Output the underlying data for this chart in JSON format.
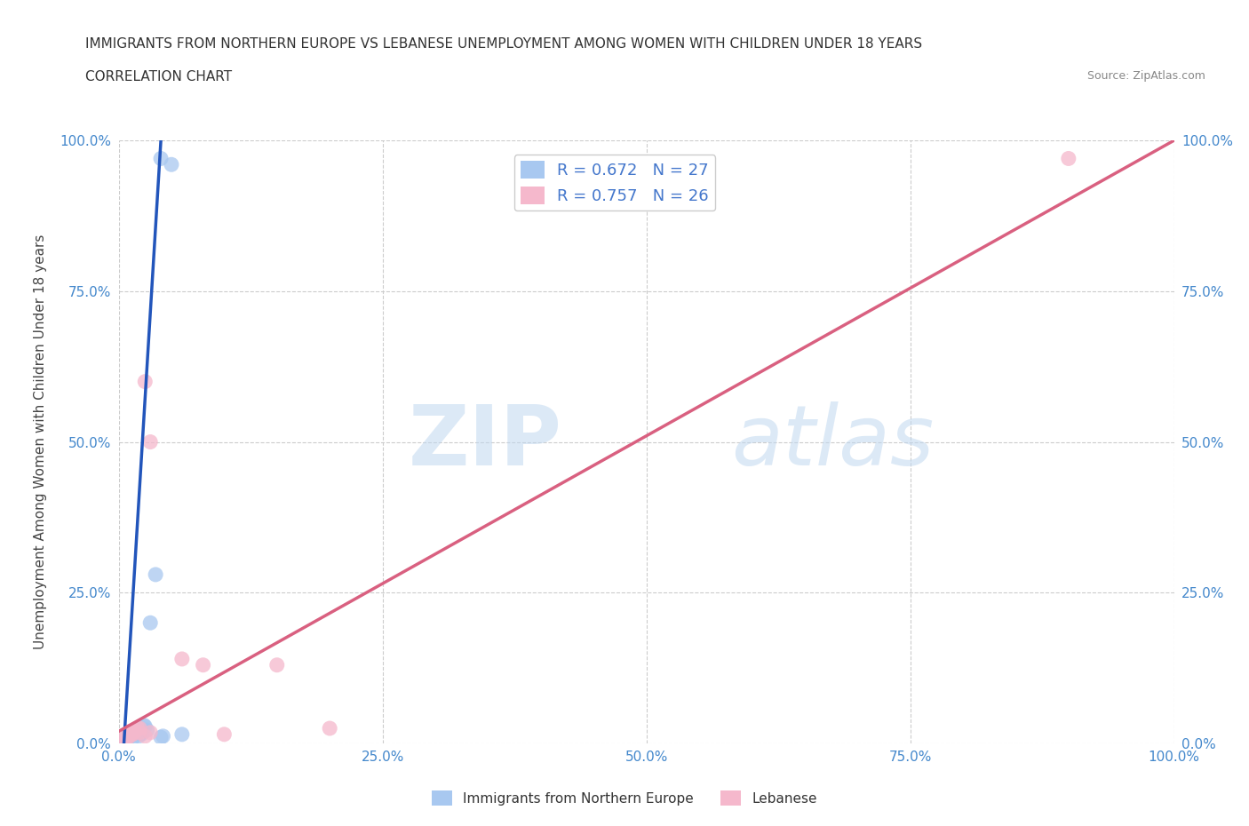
{
  "title_line1": "IMMIGRANTS FROM NORTHERN EUROPE VS LEBANESE UNEMPLOYMENT AMONG WOMEN WITH CHILDREN UNDER 18 YEARS",
  "title_line2": "CORRELATION CHART",
  "source": "Source: ZipAtlas.com",
  "ylabel": "Unemployment Among Women with Children Under 18 years",
  "xlim": [
    0.0,
    1.0
  ],
  "ylim": [
    0.0,
    1.0
  ],
  "xtick_values": [
    0.0,
    0.25,
    0.5,
    0.75,
    1.0
  ],
  "xtick_labels": [
    "0.0%",
    "25.0%",
    "50.0%",
    "75.0%",
    "100.0%"
  ],
  "ytick_values": [
    0.0,
    0.25,
    0.5,
    0.75,
    1.0
  ],
  "ytick_labels": [
    "0.0%",
    "25.0%",
    "50.0%",
    "75.0%",
    "100.0%"
  ],
  "right_ytick_labels": [
    "100.0%",
    "75.0%",
    "50.0%",
    "25.0%",
    "0.0%"
  ],
  "watermark_zip": "ZIP",
  "watermark_atlas": "atlas",
  "legend_R1": "R = 0.672",
  "legend_N1": "N = 27",
  "legend_R2": "R = 0.757",
  "legend_N2": "N = 26",
  "color_blue": "#a8c8f0",
  "color_pink": "#f5b8cc",
  "color_blue_line": "#2255bb",
  "color_pink_line": "#d96080",
  "background": "#ffffff",
  "grid_color": "#cccccc",
  "tick_color": "#4488cc",
  "blue_line_x0": 0.005,
  "blue_line_y0": 0.0,
  "blue_line_x1": 0.04,
  "blue_line_y1": 1.0,
  "pink_line_x0": 0.0,
  "pink_line_y0": 0.02,
  "pink_line_x1": 1.0,
  "pink_line_y1": 1.0,
  "blue_scatter_x": [
    0.005,
    0.007,
    0.008,
    0.009,
    0.01,
    0.011,
    0.012,
    0.013,
    0.014,
    0.015,
    0.016,
    0.017,
    0.018,
    0.019,
    0.02,
    0.021,
    0.022,
    0.024,
    0.025,
    0.027,
    0.03,
    0.035,
    0.04,
    0.05,
    0.06,
    0.04,
    0.042
  ],
  "blue_scatter_y": [
    0.005,
    0.006,
    0.01,
    0.008,
    0.012,
    0.015,
    0.013,
    0.018,
    0.01,
    0.02,
    0.018,
    0.015,
    0.022,
    0.012,
    0.025,
    0.02,
    0.016,
    0.03,
    0.028,
    0.022,
    0.2,
    0.28,
    0.97,
    0.96,
    0.015,
    0.01,
    0.012
  ],
  "pink_scatter_x": [
    0.003,
    0.005,
    0.007,
    0.008,
    0.009,
    0.01,
    0.011,
    0.012,
    0.013,
    0.015,
    0.018,
    0.02,
    0.025,
    0.03,
    0.06,
    0.08,
    0.1,
    0.15,
    0.2,
    0.9,
    0.008,
    0.012,
    0.015,
    0.02,
    0.025,
    0.03
  ],
  "pink_scatter_y": [
    0.005,
    0.008,
    0.01,
    0.012,
    0.01,
    0.015,
    0.02,
    0.018,
    0.015,
    0.02,
    0.025,
    0.018,
    0.6,
    0.5,
    0.14,
    0.13,
    0.015,
    0.13,
    0.025,
    0.97,
    0.01,
    0.015,
    0.02,
    0.025,
    0.012,
    0.018
  ]
}
